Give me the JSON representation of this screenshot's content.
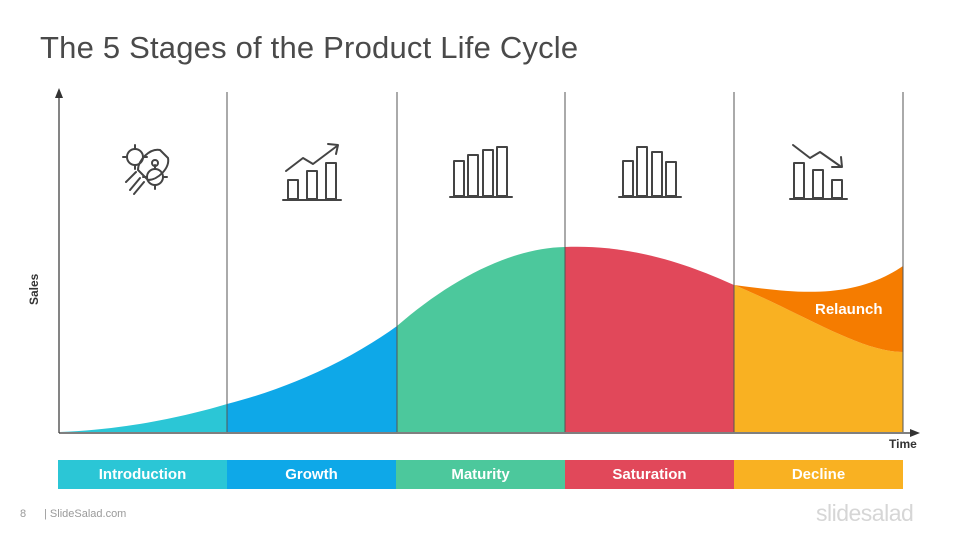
{
  "slide": {
    "title": "The 5 Stages of the Product Life Cycle",
    "slide_number": "8",
    "footer_site": "| SlideSalad.com",
    "brand": "slidesalad"
  },
  "diagram": {
    "y_axis_label": "Sales",
    "x_axis_label": "Time",
    "relaunch_label": "Relaunch",
    "stages": [
      {
        "name": "Introduction",
        "color": "#2bc6d6",
        "icon": "rocket-gear-icon"
      },
      {
        "name": "Growth",
        "color": "#0ea8e8",
        "icon": "growth-chart-arrow-up-icon"
      },
      {
        "name": "Maturity",
        "color": "#4cc89c",
        "icon": "bar-chart-rising-icon"
      },
      {
        "name": "Saturation",
        "color": "#e1485a",
        "icon": "bar-chart-peak-icon"
      },
      {
        "name": "Decline",
        "color": "#f9b122",
        "icon": "bar-chart-arrow-down-icon"
      }
    ],
    "relaunch_color": "#f57c00"
  }
}
